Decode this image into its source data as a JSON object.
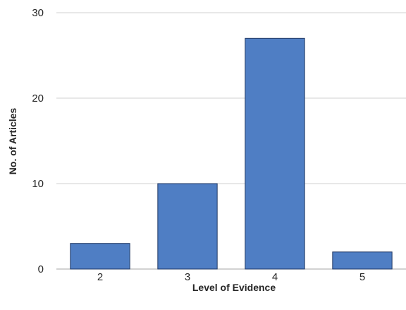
{
  "chart_data": {
    "type": "bar",
    "categories": [
      "2",
      "3",
      "4",
      "5"
    ],
    "values": [
      3,
      10,
      27,
      2
    ],
    "title": "",
    "xlabel": "Level of Evidence",
    "ylabel": "No. of Articles",
    "ylim": [
      0,
      30
    ],
    "yticks": [
      0,
      10,
      20,
      30
    ],
    "grid": "horizontal",
    "bar_color": "#4f7ec4"
  }
}
